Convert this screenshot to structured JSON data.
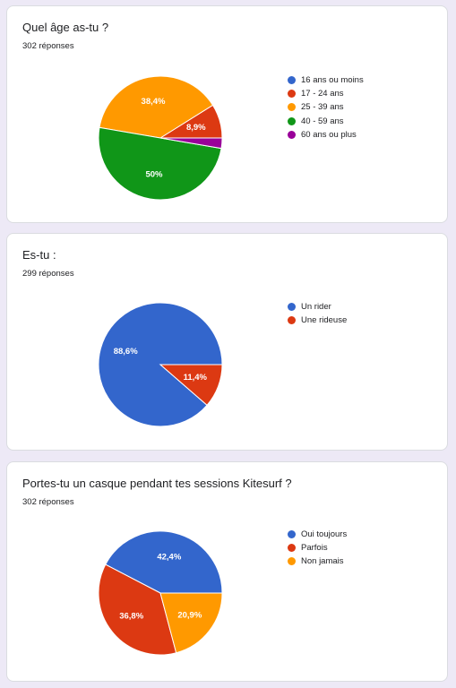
{
  "colors": {
    "blue": "#3366cc",
    "red": "#dc3912",
    "orange": "#ff9900",
    "green": "#109618",
    "purple": "#990099"
  },
  "chart_data": [
    {
      "type": "pie",
      "title": "Quel âge as-tu ?",
      "subtitle": "302 réponses",
      "legend_position": "right",
      "series": [
        {
          "name": "16 ans ou moins",
          "value": 0.0,
          "label": "",
          "color": "#3366cc"
        },
        {
          "name": "17 - 24 ans",
          "value": 8.9,
          "label": "8,9%",
          "color": "#dc3912"
        },
        {
          "name": "25 - 39 ans",
          "value": 38.4,
          "label": "38,4%",
          "color": "#ff9900"
        },
        {
          "name": "40 - 59 ans",
          "value": 50.0,
          "label": "50%",
          "color": "#109618"
        },
        {
          "name": "60 ans ou plus",
          "value": 2.7,
          "label": "",
          "color": "#990099"
        }
      ]
    },
    {
      "type": "pie",
      "title": "Es-tu :",
      "subtitle": "299 réponses",
      "legend_position": "right",
      "series": [
        {
          "name": "Un rider",
          "value": 88.6,
          "label": "88,6%",
          "color": "#3366cc"
        },
        {
          "name": "Une rideuse",
          "value": 11.4,
          "label": "11,4%",
          "color": "#dc3912"
        }
      ]
    },
    {
      "type": "pie",
      "title": "Portes-tu un casque pendant tes sessions Kitesurf ?",
      "subtitle": "302 réponses",
      "legend_position": "right",
      "series": [
        {
          "name": "Oui toujours",
          "value": 42.4,
          "label": "42,4%",
          "color": "#3366cc"
        },
        {
          "name": "Parfois",
          "value": 36.8,
          "label": "36,8%",
          "color": "#dc3912"
        },
        {
          "name": "Non jamais",
          "value": 20.9,
          "label": "20,9%",
          "color": "#ff9900"
        }
      ]
    }
  ]
}
